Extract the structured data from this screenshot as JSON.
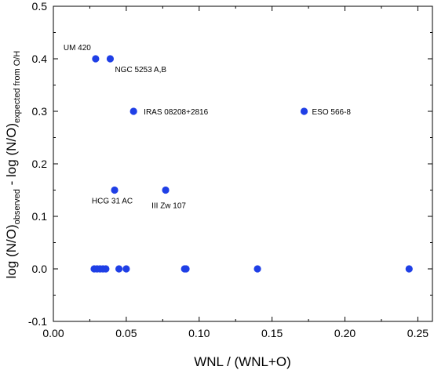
{
  "chart_data": {
    "type": "scatter",
    "xlabel": "WNL / (WNL+O)",
    "ylabel": {
      "base1": "log (N/O)",
      "sub1": "observed",
      "mid": " - log (N/O)",
      "sub2": "expected from O/H"
    },
    "xlim": [
      0.0,
      0.26
    ],
    "ylim": [
      -0.1,
      0.5
    ],
    "x_ticks": [
      "0.00",
      "0.05",
      "0.10",
      "0.15",
      "0.20",
      "0.25"
    ],
    "y_ticks": [
      "-0.1",
      "0.0",
      "0.1",
      "0.2",
      "0.3",
      "0.4",
      "0.5"
    ],
    "grid": false,
    "marker_color": "#1f3fe6",
    "points": [
      {
        "x": 0.029,
        "y": 0.4,
        "label": "UM 420"
      },
      {
        "x": 0.039,
        "y": 0.4,
        "label": "NGC 5253 A,B"
      },
      {
        "x": 0.055,
        "y": 0.3,
        "label": "IRAS 08208+2816"
      },
      {
        "x": 0.172,
        "y": 0.3,
        "label": "ESO 566-8"
      },
      {
        "x": 0.042,
        "y": 0.15,
        "label": "HCG 31 AC"
      },
      {
        "x": 0.077,
        "y": 0.15,
        "label": "III Zw 107"
      },
      {
        "x": 0.028,
        "y": 0.0,
        "label": ""
      },
      {
        "x": 0.03,
        "y": 0.0,
        "label": ""
      },
      {
        "x": 0.032,
        "y": 0.0,
        "label": ""
      },
      {
        "x": 0.034,
        "y": 0.0,
        "label": ""
      },
      {
        "x": 0.036,
        "y": 0.0,
        "label": ""
      },
      {
        "x": 0.045,
        "y": 0.0,
        "label": ""
      },
      {
        "x": 0.05,
        "y": 0.0,
        "label": ""
      },
      {
        "x": 0.09,
        "y": 0.0,
        "label": ""
      },
      {
        "x": 0.091,
        "y": 0.0,
        "label": ""
      },
      {
        "x": 0.14,
        "y": 0.0,
        "label": ""
      },
      {
        "x": 0.244,
        "y": 0.0,
        "label": ""
      }
    ]
  }
}
